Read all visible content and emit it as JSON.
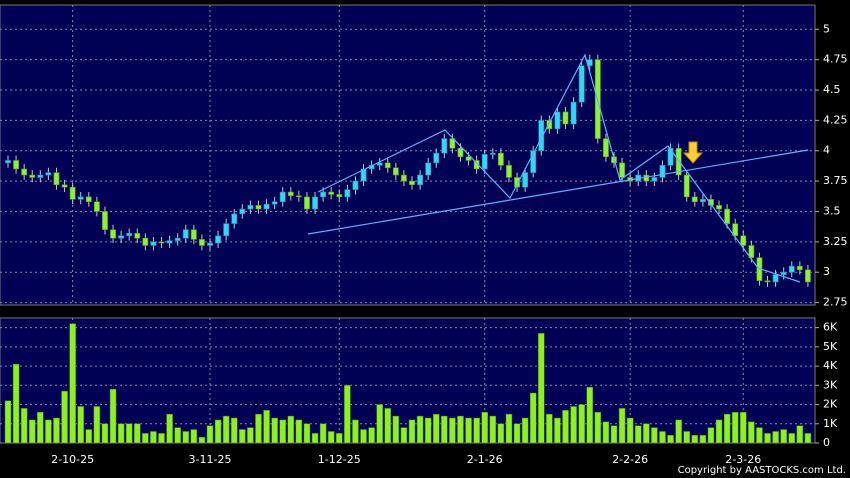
{
  "chart_data": {
    "type": "candlestick",
    "categories": [
      null,
      null,
      null,
      null,
      null,
      null,
      null,
      null,
      "2-10-25",
      null,
      null,
      null,
      null,
      null,
      null,
      null,
      null,
      null,
      null,
      null,
      null,
      null,
      null,
      null,
      null,
      "3-11-25",
      null,
      null,
      null,
      null,
      null,
      null,
      null,
      null,
      null,
      null,
      null,
      null,
      null,
      null,
      null,
      "1-12-25",
      null,
      null,
      null,
      null,
      null,
      null,
      null,
      null,
      null,
      null,
      null,
      null,
      null,
      null,
      null,
      null,
      null,
      "2-1-26",
      null,
      null,
      null,
      null,
      null,
      null,
      null,
      null,
      null,
      null,
      null,
      null,
      null,
      null,
      null,
      null,
      null,
      "2-2-26",
      null,
      null,
      null,
      null,
      null,
      null,
      null,
      null,
      null,
      null,
      null,
      null,
      null,
      "2-3-26",
      null,
      null,
      null,
      null,
      null,
      null,
      null,
      null
    ],
    "open": [
      3.9,
      3.92,
      3.85,
      3.8,
      3.78,
      3.8,
      3.82,
      3.72,
      3.7,
      3.6,
      3.62,
      3.58,
      3.5,
      3.35,
      3.28,
      3.3,
      3.32,
      3.28,
      3.22,
      3.25,
      3.24,
      3.26,
      3.28,
      3.35,
      3.27,
      3.22,
      3.24,
      3.3,
      3.4,
      3.48,
      3.52,
      3.55,
      3.52,
      3.56,
      3.58,
      3.66,
      3.63,
      3.62,
      3.52,
      3.62,
      3.66,
      3.64,
      3.62,
      3.68,
      3.75,
      3.85,
      3.88,
      3.9,
      3.86,
      3.8,
      3.75,
      3.72,
      3.8,
      3.9,
      3.98,
      4.1,
      4.02,
      3.95,
      3.92,
      3.85,
      3.97,
      3.98,
      3.88,
      3.78,
      3.7,
      3.82,
      4.0,
      4.25,
      4.18,
      4.32,
      4.22,
      4.4,
      4.7,
      4.75,
      4.1,
      3.95,
      3.9,
      3.78,
      3.75,
      3.8,
      3.75,
      3.78,
      3.88,
      4.02,
      3.8,
      3.62,
      3.58,
      3.6,
      3.55,
      3.52,
      3.4,
      3.3,
      3.22,
      3.12,
      2.93,
      2.92,
      2.98,
      3.0,
      3.05,
      3.02
    ],
    "high": [
      3.96,
      3.96,
      3.89,
      3.84,
      3.84,
      3.86,
      3.86,
      3.76,
      3.74,
      3.66,
      3.66,
      3.62,
      3.54,
      3.39,
      3.34,
      3.36,
      3.36,
      3.32,
      3.29,
      3.29,
      3.3,
      3.32,
      3.39,
      3.39,
      3.31,
      3.28,
      3.34,
      3.44,
      3.52,
      3.56,
      3.59,
      3.59,
      3.6,
      3.62,
      3.7,
      3.7,
      3.67,
      3.66,
      3.66,
      3.7,
      3.7,
      3.68,
      3.72,
      3.79,
      3.89,
      3.92,
      3.94,
      3.94,
      3.9,
      3.84,
      3.79,
      3.84,
      3.94,
      4.02,
      4.14,
      4.14,
      4.06,
      3.99,
      3.96,
      4.01,
      4.02,
      4.02,
      3.92,
      3.82,
      3.86,
      4.04,
      4.29,
      4.29,
      4.36,
      4.36,
      4.44,
      4.74,
      4.79,
      4.79,
      4.14,
      3.99,
      3.94,
      3.82,
      3.84,
      3.84,
      3.82,
      3.92,
      4.06,
      4.06,
      3.84,
      3.66,
      3.64,
      3.64,
      3.59,
      3.56,
      3.44,
      3.34,
      3.26,
      3.16,
      2.97,
      3.02,
      3.04,
      3.09,
      3.09,
      3.06
    ],
    "low": [
      3.86,
      3.81,
      3.76,
      3.74,
      3.74,
      3.76,
      3.68,
      3.66,
      3.56,
      3.56,
      3.54,
      3.46,
      3.31,
      3.24,
      3.24,
      3.26,
      3.24,
      3.18,
      3.18,
      3.2,
      3.2,
      3.22,
      3.24,
      3.23,
      3.18,
      3.18,
      3.2,
      3.26,
      3.36,
      3.44,
      3.48,
      3.48,
      3.48,
      3.52,
      3.54,
      3.59,
      3.58,
      3.48,
      3.48,
      3.58,
      3.6,
      3.58,
      3.58,
      3.64,
      3.71,
      3.81,
      3.84,
      3.82,
      3.76,
      3.71,
      3.68,
      3.68,
      3.76,
      3.86,
      3.94,
      3.98,
      3.91,
      3.88,
      3.81,
      3.81,
      3.93,
      3.84,
      3.74,
      3.66,
      3.66,
      3.78,
      3.96,
      4.14,
      4.14,
      4.18,
      4.18,
      4.36,
      4.66,
      4.06,
      3.91,
      3.86,
      3.74,
      3.71,
      3.71,
      3.71,
      3.71,
      3.74,
      3.84,
      3.76,
      3.58,
      3.54,
      3.54,
      3.51,
      3.48,
      3.36,
      3.26,
      3.18,
      3.08,
      2.89,
      2.88,
      2.88,
      2.94,
      2.96,
      2.98,
      2.88
    ],
    "close": [
      3.92,
      3.85,
      3.8,
      3.78,
      3.8,
      3.82,
      3.72,
      3.7,
      3.6,
      3.62,
      3.58,
      3.5,
      3.35,
      3.28,
      3.3,
      3.32,
      3.28,
      3.22,
      3.25,
      3.24,
      3.26,
      3.28,
      3.35,
      3.27,
      3.22,
      3.24,
      3.3,
      3.4,
      3.48,
      3.52,
      3.55,
      3.52,
      3.56,
      3.58,
      3.66,
      3.63,
      3.62,
      3.52,
      3.62,
      3.66,
      3.64,
      3.62,
      3.68,
      3.75,
      3.85,
      3.88,
      3.9,
      3.86,
      3.8,
      3.75,
      3.72,
      3.8,
      3.9,
      3.98,
      4.1,
      4.02,
      3.95,
      3.92,
      3.85,
      3.97,
      3.98,
      3.88,
      3.78,
      3.7,
      3.82,
      4.0,
      4.25,
      4.18,
      4.32,
      4.22,
      4.4,
      4.7,
      4.75,
      4.1,
      3.95,
      3.9,
      3.78,
      3.75,
      3.8,
      3.75,
      3.78,
      3.88,
      4.02,
      3.8,
      3.62,
      3.58,
      3.6,
      3.55,
      3.52,
      3.4,
      3.3,
      3.22,
      3.12,
      2.93,
      2.92,
      2.98,
      3.0,
      3.05,
      3.02,
      2.92
    ],
    "up_color": "#33d6f5",
    "down_color": "#8ef03a",
    "ylim": [
      2.73,
      5.2
    ],
    "yticks": [
      2.75,
      3,
      3.25,
      3.5,
      3.75,
      4,
      4.25,
      4.5,
      4.75,
      5
    ],
    "grid": true,
    "volume": {
      "values": [
        2200,
        4100,
        1800,
        1200,
        1600,
        1200,
        1300,
        2700,
        6200,
        1900,
        700,
        1900,
        1000,
        2800,
        1000,
        1000,
        1000,
        500,
        600,
        500,
        1500,
        800,
        600,
        700,
        300,
        900,
        1200,
        1400,
        1300,
        700,
        800,
        1500,
        1700,
        1300,
        1200,
        1400,
        1200,
        1000,
        500,
        1000,
        600,
        500,
        3000,
        1200,
        700,
        800,
        2000,
        1800,
        1400,
        800,
        1200,
        1400,
        1300,
        1500,
        1400,
        1300,
        1400,
        1300,
        1300,
        1600,
        1400,
        1000,
        1500,
        1000,
        1300,
        2600,
        5700,
        1500,
        1300,
        1700,
        1900,
        2000,
        2900,
        1600,
        1100,
        900,
        1800,
        1300,
        900,
        1000,
        800,
        600,
        400,
        1200,
        600,
        400,
        400,
        800,
        1200,
        1500,
        1600,
        1600,
        1100,
        800,
        500,
        600,
        700,
        500,
        900,
        500
      ],
      "color": "#8ef022",
      "ylim": [
        0,
        6500
      ],
      "yticks": [
        0,
        {
          "value": 1000,
          "label": "1K"
        },
        {
          "value": 2000,
          "label": "2K"
        },
        {
          "value": 3000,
          "label": "3K"
        },
        {
          "value": 4000,
          "label": "4K"
        },
        {
          "value": 5000,
          "label": "5K"
        },
        {
          "value": 6000,
          "label": "6K"
        }
      ]
    },
    "copyright": "Copyright by AASTOCKS.com Ltd."
  }
}
